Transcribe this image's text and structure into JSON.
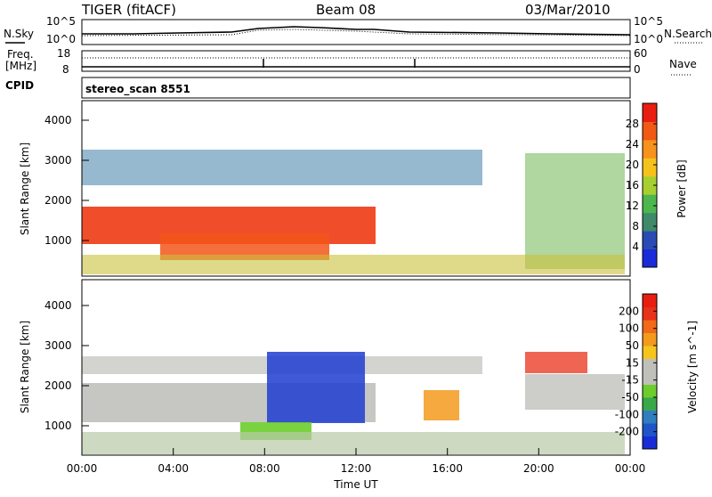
{
  "header": {
    "title": "TIGER (fitACF)",
    "beam": "Beam 08",
    "date": "03/Mar/2010"
  },
  "top_panel": {
    "left_label": "N.Sky",
    "right_label": "N.Search",
    "left_ticks": [
      "10^5",
      "10^0"
    ],
    "right_ticks": [
      "10^5",
      "10^0"
    ]
  },
  "freq_panel": {
    "left_label_1": "Freq.",
    "left_label_2": "[MHz]",
    "left_ticks": [
      "18",
      "8"
    ],
    "right_label": "Nave",
    "right_ticks": [
      "60",
      "0"
    ]
  },
  "cpid": {
    "label": "CPID",
    "value": "stereo_scan 8551"
  },
  "chart_data": [
    {
      "type": "heatmap",
      "name": "power",
      "ylabel": "Slant Range [km]",
      "ylim": [
        180,
        4600
      ],
      "yticks": [
        "1000",
        "2000",
        "3000",
        "4000"
      ],
      "colorbar_label": "Power [dB]",
      "colorbar_ticks": [
        "4",
        "8",
        "12",
        "16",
        "20",
        "24",
        "28"
      ],
      "colorbar_range": [
        0,
        32
      ],
      "colorbar_colors": [
        "#1a2bd8",
        "#2a4bb4",
        "#3e8a6a",
        "#4db64e",
        "#a6cf2f",
        "#f5c21b",
        "#f7921d",
        "#f05a15",
        "#e81e10"
      ]
    },
    {
      "type": "heatmap",
      "name": "velocity",
      "ylabel": "Slant Range [km]",
      "ylim": [
        180,
        4600
      ],
      "yticks": [
        "1000",
        "2000",
        "3000",
        "4000"
      ],
      "colorbar_label": "Velocity [m s^-1]",
      "colorbar_ticks": [
        "200",
        "100",
        "50",
        "15",
        "-15",
        "-50",
        "-100",
        "-200"
      ],
      "colorbar_colors": [
        "#1a2bd8",
        "#1f55c8",
        "#2f7ec0",
        "#3aa84a",
        "#6ccd2c",
        "#c0c0bb",
        "#c0c0bb",
        "#f6c51c",
        "#f39a1c",
        "#f06a1a",
        "#e8321a",
        "#e81e10"
      ]
    }
  ],
  "x_axis": {
    "ticks": [
      "00:00",
      "04:00",
      "08:00",
      "12:00",
      "16:00",
      "20:00",
      "00:00"
    ],
    "label": "Time UT"
  }
}
